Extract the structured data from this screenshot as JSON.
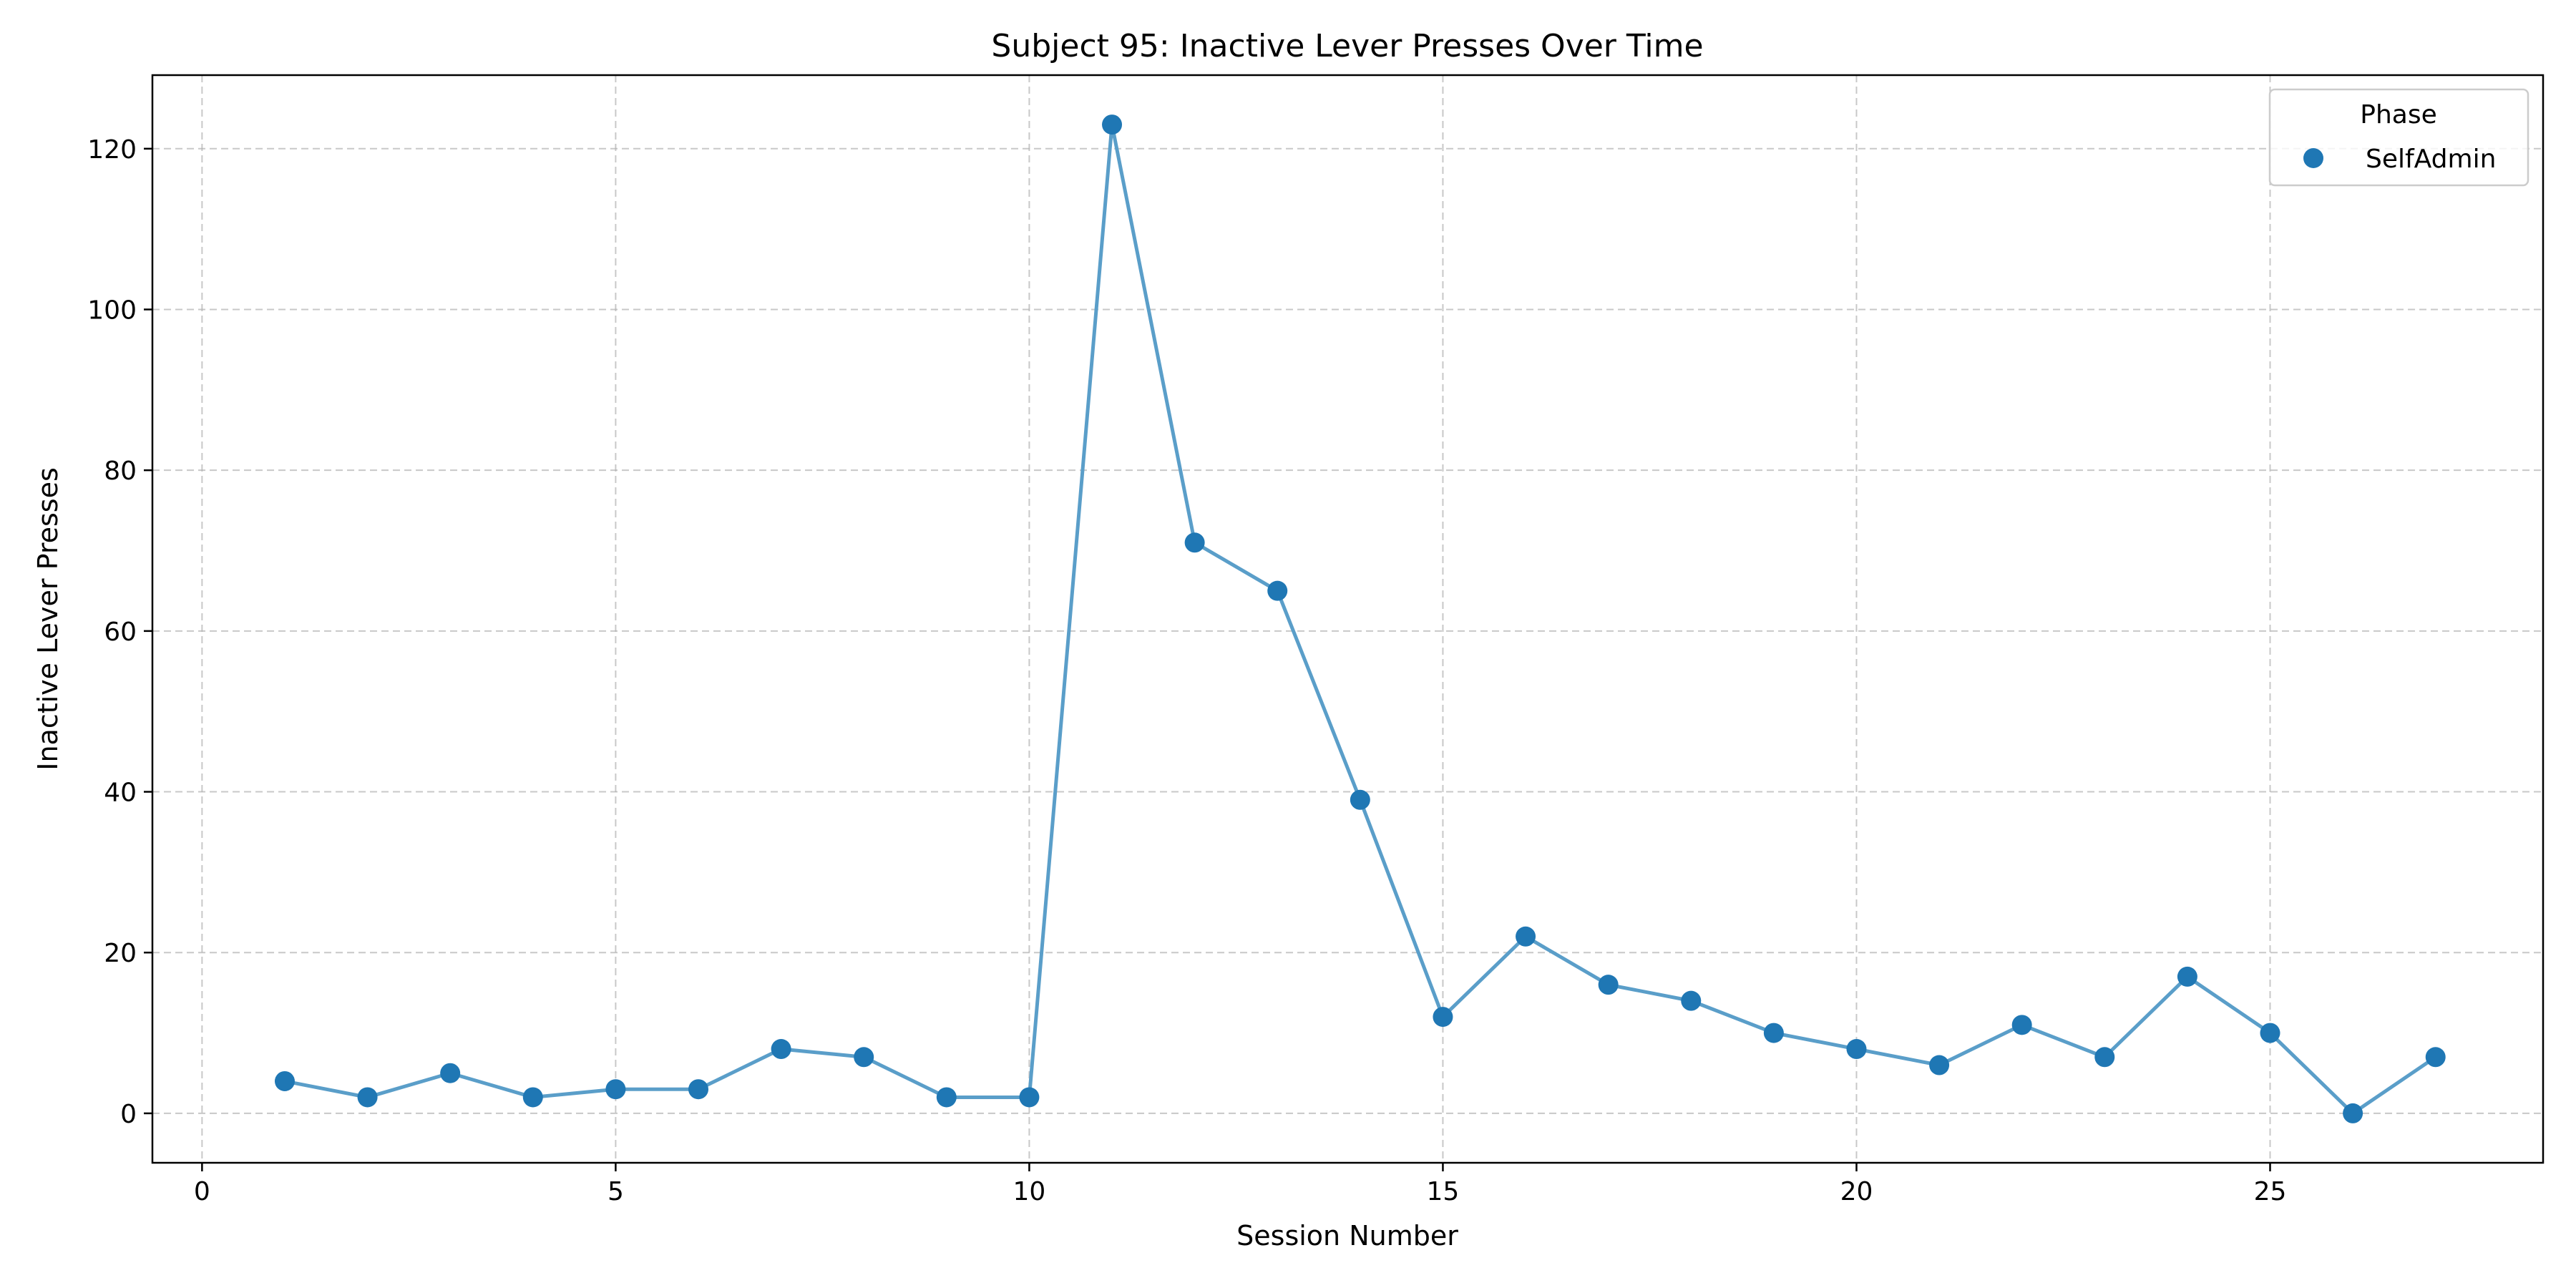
{
  "chart_data": {
    "type": "line",
    "title": "Subject 95: Inactive Lever Presses Over Time",
    "xlabel": "Session Number",
    "ylabel": "Inactive Lever Presses",
    "xlim": [
      -0.6,
      28.3
    ],
    "ylim": [
      -6.15,
      129.15
    ],
    "xticks": [
      0,
      5,
      10,
      15,
      20,
      25
    ],
    "yticks": [
      0,
      20,
      40,
      60,
      80,
      100,
      120
    ],
    "grid": true,
    "legend": {
      "title": "Phase",
      "position": "top-right"
    },
    "series": [
      {
        "name": "SelfAdmin",
        "color": "#1f77b4",
        "line_color": "#5a9ec9",
        "x": [
          1,
          2,
          3,
          4,
          5,
          6,
          7,
          8,
          9,
          10,
          11,
          12,
          13,
          14,
          15,
          16,
          17,
          18,
          19,
          20,
          21,
          22,
          23,
          24,
          25,
          26,
          27
        ],
        "y": [
          4,
          2,
          5,
          2,
          3,
          3,
          8,
          7,
          2,
          2,
          123,
          71,
          65,
          39,
          12,
          22,
          16,
          14,
          10,
          8,
          6,
          11,
          7,
          17,
          10,
          0,
          7
        ]
      }
    ]
  }
}
